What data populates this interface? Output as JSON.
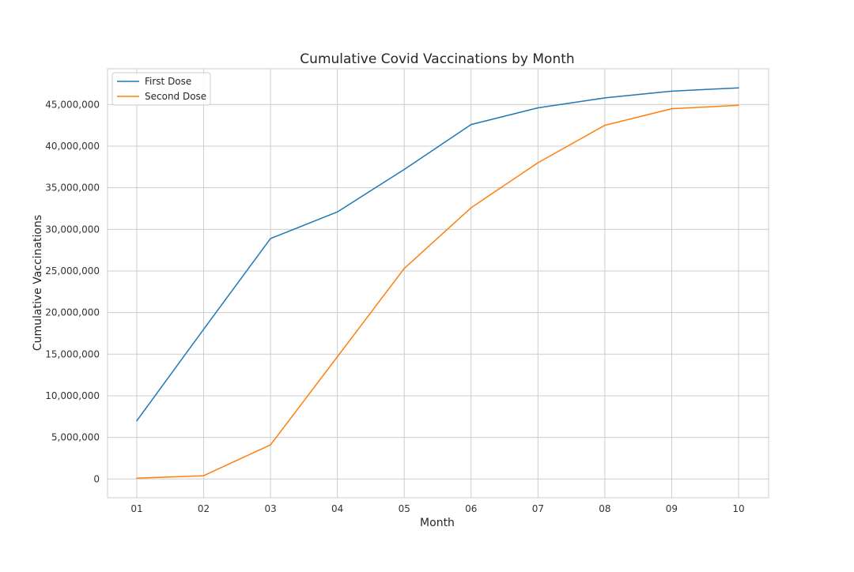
{
  "chart_data": {
    "type": "line",
    "title": "Cumulative Covid Vaccinations by Month",
    "xlabel": "Month",
    "ylabel": "Cumulative Vaccinations",
    "categories": [
      "01",
      "02",
      "03",
      "04",
      "05",
      "06",
      "07",
      "08",
      "09",
      "10"
    ],
    "series": [
      {
        "name": "First Dose",
        "color": "#1f77b4",
        "values": [
          7000000,
          18000000,
          28900000,
          32100000,
          37200000,
          42600000,
          44600000,
          45800000,
          46600000,
          47000000
        ]
      },
      {
        "name": "Second Dose",
        "color": "#ff7f0e",
        "values": [
          100000,
          400000,
          4100000,
          14700000,
          25300000,
          32600000,
          38000000,
          42500000,
          44500000,
          44900000
        ]
      }
    ],
    "ylim": [
      -2250000,
      49300000
    ],
    "yticks": [
      0,
      5000000,
      10000000,
      15000000,
      20000000,
      25000000,
      30000000,
      35000000,
      40000000,
      45000000
    ],
    "ytick_labels": [
      "0",
      "5,000,000",
      "10,000,000",
      "15,000,000",
      "20,000,000",
      "25,000,000",
      "30,000,000",
      "35,000,000",
      "40,000,000",
      "45,000,000"
    ],
    "grid": true,
    "legend_position": "top-left"
  }
}
